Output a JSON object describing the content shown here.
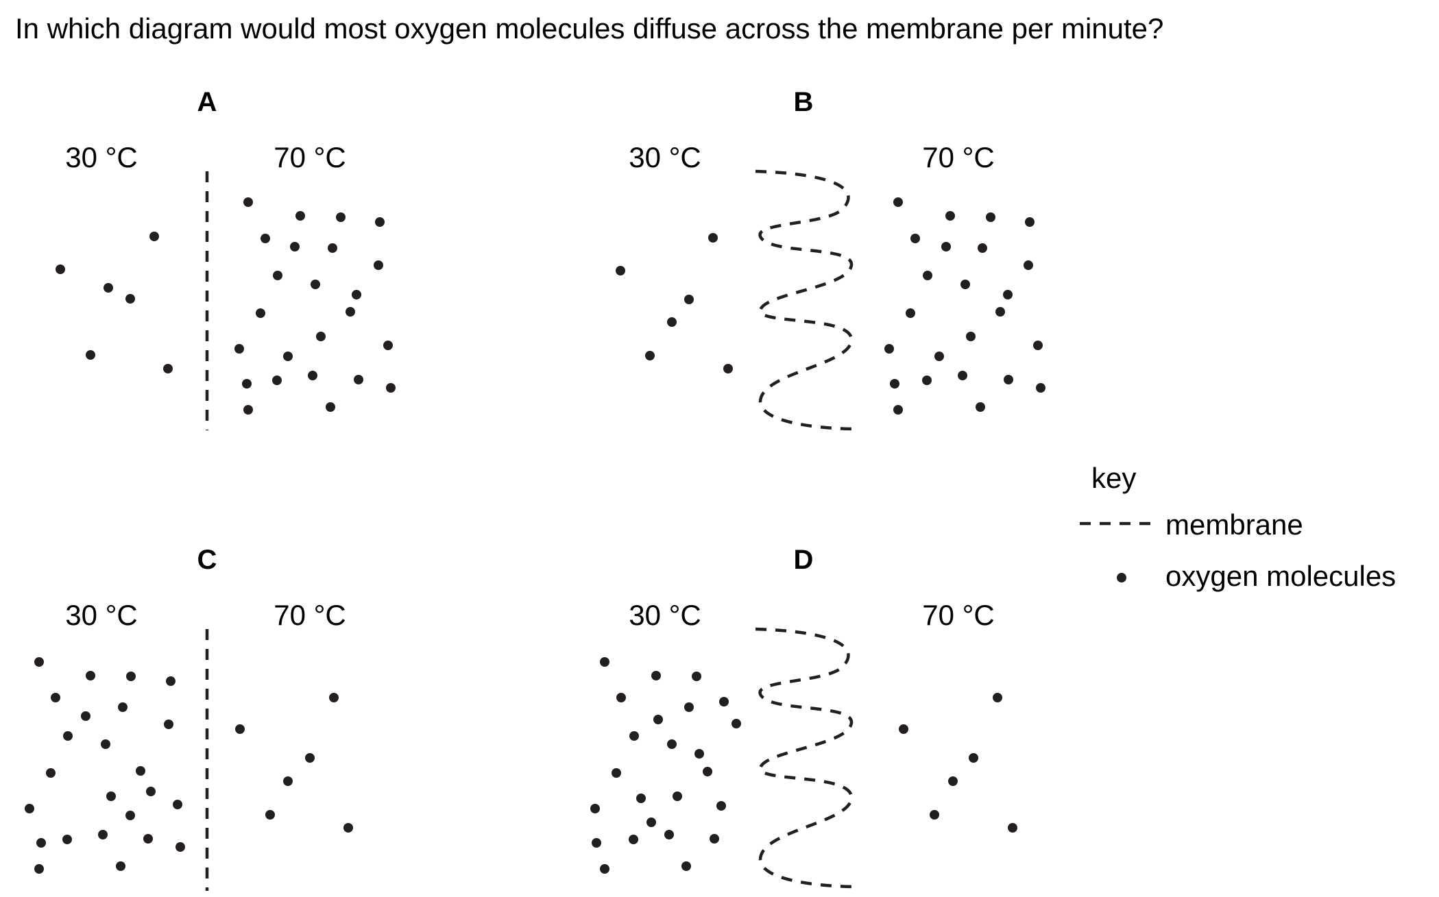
{
  "question": "In which diagram would most oxygen molecules diffuse across the membrane per minute?",
  "panels": [
    {
      "letter": "A",
      "left_temp": "30 °C",
      "right_temp": "70 °C",
      "membrane": "straight",
      "left_molecules": 6,
      "right_molecules": 24
    },
    {
      "letter": "B",
      "left_temp": "30 °C",
      "right_temp": "70 °C",
      "membrane": "folded",
      "left_molecules": 6,
      "right_molecules": 24
    },
    {
      "letter": "C",
      "left_temp": "30 °C",
      "right_temp": "70 °C",
      "membrane": "straight",
      "left_molecules": 24,
      "right_molecules": 6
    },
    {
      "letter": "D",
      "left_temp": "30 °C",
      "right_temp": "70 °C",
      "membrane": "folded",
      "left_molecules": 24,
      "right_molecules": 6
    }
  ],
  "key": {
    "title": "key",
    "membrane_label": "membrane",
    "molecule_label": "oxygen molecules"
  }
}
